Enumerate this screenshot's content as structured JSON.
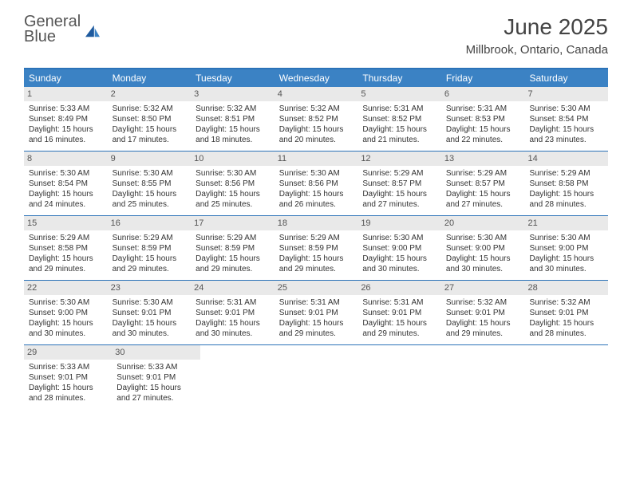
{
  "logo": {
    "word1": "General",
    "word2": "Blue"
  },
  "title": "June 2025",
  "location": "Millbrook, Ontario, Canada",
  "colors": {
    "header_bg": "#3b82c4",
    "rule": "#2b72b8",
    "daynum_bg": "#e9e9e9",
    "text": "#333333",
    "title": "#444444"
  },
  "weekdays": [
    "Sunday",
    "Monday",
    "Tuesday",
    "Wednesday",
    "Thursday",
    "Friday",
    "Saturday"
  ],
  "weeks": [
    [
      {
        "n": "1",
        "sr": "5:33 AM",
        "ss": "8:49 PM",
        "dl1": "15 hours",
        "dl2": "16 minutes."
      },
      {
        "n": "2",
        "sr": "5:32 AM",
        "ss": "8:50 PM",
        "dl1": "15 hours",
        "dl2": "17 minutes."
      },
      {
        "n": "3",
        "sr": "5:32 AM",
        "ss": "8:51 PM",
        "dl1": "15 hours",
        "dl2": "18 minutes."
      },
      {
        "n": "4",
        "sr": "5:32 AM",
        "ss": "8:52 PM",
        "dl1": "15 hours",
        "dl2": "20 minutes."
      },
      {
        "n": "5",
        "sr": "5:31 AM",
        "ss": "8:52 PM",
        "dl1": "15 hours",
        "dl2": "21 minutes."
      },
      {
        "n": "6",
        "sr": "5:31 AM",
        "ss": "8:53 PM",
        "dl1": "15 hours",
        "dl2": "22 minutes."
      },
      {
        "n": "7",
        "sr": "5:30 AM",
        "ss": "8:54 PM",
        "dl1": "15 hours",
        "dl2": "23 minutes."
      }
    ],
    [
      {
        "n": "8",
        "sr": "5:30 AM",
        "ss": "8:54 PM",
        "dl1": "15 hours",
        "dl2": "24 minutes."
      },
      {
        "n": "9",
        "sr": "5:30 AM",
        "ss": "8:55 PM",
        "dl1": "15 hours",
        "dl2": "25 minutes."
      },
      {
        "n": "10",
        "sr": "5:30 AM",
        "ss": "8:56 PM",
        "dl1": "15 hours",
        "dl2": "25 minutes."
      },
      {
        "n": "11",
        "sr": "5:30 AM",
        "ss": "8:56 PM",
        "dl1": "15 hours",
        "dl2": "26 minutes."
      },
      {
        "n": "12",
        "sr": "5:29 AM",
        "ss": "8:57 PM",
        "dl1": "15 hours",
        "dl2": "27 minutes."
      },
      {
        "n": "13",
        "sr": "5:29 AM",
        "ss": "8:57 PM",
        "dl1": "15 hours",
        "dl2": "27 minutes."
      },
      {
        "n": "14",
        "sr": "5:29 AM",
        "ss": "8:58 PM",
        "dl1": "15 hours",
        "dl2": "28 minutes."
      }
    ],
    [
      {
        "n": "15",
        "sr": "5:29 AM",
        "ss": "8:58 PM",
        "dl1": "15 hours",
        "dl2": "29 minutes."
      },
      {
        "n": "16",
        "sr": "5:29 AM",
        "ss": "8:59 PM",
        "dl1": "15 hours",
        "dl2": "29 minutes."
      },
      {
        "n": "17",
        "sr": "5:29 AM",
        "ss": "8:59 PM",
        "dl1": "15 hours",
        "dl2": "29 minutes."
      },
      {
        "n": "18",
        "sr": "5:29 AM",
        "ss": "8:59 PM",
        "dl1": "15 hours",
        "dl2": "29 minutes."
      },
      {
        "n": "19",
        "sr": "5:30 AM",
        "ss": "9:00 PM",
        "dl1": "15 hours",
        "dl2": "30 minutes."
      },
      {
        "n": "20",
        "sr": "5:30 AM",
        "ss": "9:00 PM",
        "dl1": "15 hours",
        "dl2": "30 minutes."
      },
      {
        "n": "21",
        "sr": "5:30 AM",
        "ss": "9:00 PM",
        "dl1": "15 hours",
        "dl2": "30 minutes."
      }
    ],
    [
      {
        "n": "22",
        "sr": "5:30 AM",
        "ss": "9:00 PM",
        "dl1": "15 hours",
        "dl2": "30 minutes."
      },
      {
        "n": "23",
        "sr": "5:30 AM",
        "ss": "9:01 PM",
        "dl1": "15 hours",
        "dl2": "30 minutes."
      },
      {
        "n": "24",
        "sr": "5:31 AM",
        "ss": "9:01 PM",
        "dl1": "15 hours",
        "dl2": "30 minutes."
      },
      {
        "n": "25",
        "sr": "5:31 AM",
        "ss": "9:01 PM",
        "dl1": "15 hours",
        "dl2": "29 minutes."
      },
      {
        "n": "26",
        "sr": "5:31 AM",
        "ss": "9:01 PM",
        "dl1": "15 hours",
        "dl2": "29 minutes."
      },
      {
        "n": "27",
        "sr": "5:32 AM",
        "ss": "9:01 PM",
        "dl1": "15 hours",
        "dl2": "29 minutes."
      },
      {
        "n": "28",
        "sr": "5:32 AM",
        "ss": "9:01 PM",
        "dl1": "15 hours",
        "dl2": "28 minutes."
      }
    ],
    [
      {
        "n": "29",
        "sr": "5:33 AM",
        "ss": "9:01 PM",
        "dl1": "15 hours",
        "dl2": "28 minutes."
      },
      {
        "n": "30",
        "sr": "5:33 AM",
        "ss": "9:01 PM",
        "dl1": "15 hours",
        "dl2": "27 minutes."
      },
      null,
      null,
      null,
      null,
      null
    ]
  ],
  "labels": {
    "sunrise": "Sunrise: ",
    "sunset": "Sunset: ",
    "daylight": "Daylight: ",
    "and": "and "
  }
}
